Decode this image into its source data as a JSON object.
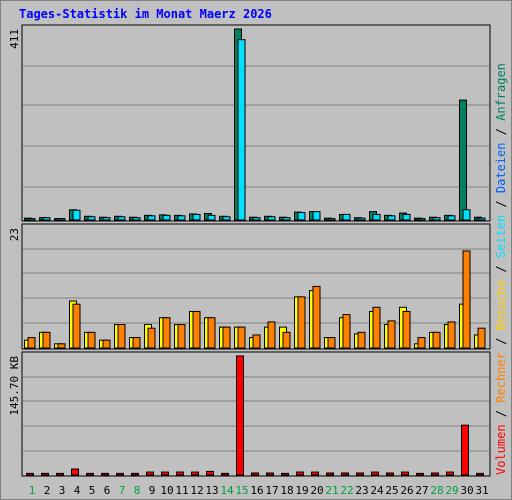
{
  "chart_data": {
    "title": "Tages-Statistik im Monat Maerz 2026",
    "type": "bar",
    "categories": [
      "1",
      "2",
      "3",
      "4",
      "5",
      "6",
      "7",
      "8",
      "9",
      "10",
      "11",
      "12",
      "13",
      "14",
      "15",
      "16",
      "17",
      "18",
      "19",
      "20",
      "21",
      "22",
      "23",
      "24",
      "25",
      "26",
      "27",
      "28",
      "29",
      "30",
      "31"
    ],
    "weekend_days": [
      "1",
      "7",
      "8",
      "14",
      "15",
      "21",
      "22",
      "28",
      "29"
    ],
    "panels": [
      {
        "name": "hits-files",
        "ytick": "411",
        "ymax": 411,
        "series": [
          {
            "name": "Anfragen",
            "color": "#008060",
            "values": [
              4,
              5,
              3,
              22,
              8,
              6,
              8,
              6,
              10,
              11,
              10,
              13,
              14,
              8,
              411,
              6,
              8,
              6,
              17,
              18,
              4,
              12,
              5,
              18,
              10,
              15,
              4,
              6,
              10,
              258,
              6
            ]
          },
          {
            "name": "Dateien",
            "color": "#00e0ff",
            "values": [
              3,
              5,
              3,
              21,
              7,
              5,
              7,
              5,
              9,
              10,
              9,
              12,
              10,
              7,
              388,
              5,
              7,
              5,
              16,
              18,
              3,
              12,
              4,
              12,
              9,
              12,
              3,
              5,
              9,
              22,
              4
            ]
          }
        ]
      },
      {
        "name": "visits-pages",
        "ytick": "23",
        "ymax": 23,
        "series": [
          {
            "name": "Seiten",
            "color": "#ffff00",
            "values": [
              1.5,
              3,
              0.8,
              9,
              3,
              1.5,
              4.5,
              2,
              4.5,
              5.8,
              4.5,
              7,
              5.8,
              4,
              4,
              2,
              4,
              4,
              9.8,
              11,
              2,
              5.8,
              2.7,
              7,
              4.5,
              7.8,
              0.8,
              3,
              4.5,
              8.4,
              2.5
            ]
          },
          {
            "name": "Besuche",
            "color": "#ff8000",
            "values": [
              2,
              3,
              0.8,
              8.4,
              3,
              1.5,
              4.5,
              2,
              3.8,
              5.8,
              4.5,
              7,
              5.8,
              4,
              4,
              2.5,
              5,
              3,
              9.8,
              11.8,
              2,
              6.4,
              3,
              7.8,
              5.2,
              7,
              2,
              3,
              5,
              18.6,
              3.8
            ]
          }
        ]
      },
      {
        "name": "volume",
        "ytick": "145.70 KB",
        "ymax": 145.7,
        "series": [
          {
            "name": "Volumen",
            "color": "#ff0000",
            "values": [
              2,
              2,
              2,
              7.3,
              2,
              2,
              2,
              2,
              3.6,
              3.6,
              3.6,
              3.6,
              4.4,
              2,
              145.7,
              2.5,
              2.5,
              2,
              3.6,
              3.6,
              2.5,
              2.5,
              2.5,
              3.6,
              2.5,
              3.6,
              2,
              2.5,
              3.6,
              61,
              2
            ]
          }
        ]
      }
    ],
    "side_legend": [
      {
        "text": "Volumen",
        "color": "#ff0000"
      },
      {
        "text": " / ",
        "color": "#000000"
      },
      {
        "text": "Rechner",
        "color": "#ff8000"
      },
      {
        "text": " / ",
        "color": "#000000"
      },
      {
        "text": "Besuche",
        "color": "#ffd000"
      },
      {
        "text": " / ",
        "color": "#000000"
      },
      {
        "text": "Seiten",
        "color": "#00e0ff"
      },
      {
        "text": " / ",
        "color": "#000000"
      },
      {
        "text": "Dateien",
        "color": "#0060ff"
      },
      {
        "text": " / ",
        "color": "#000000"
      },
      {
        "text": "Anfragen",
        "color": "#008060"
      }
    ],
    "colors": {
      "title": "#0000ff",
      "weekday_label": "#000000",
      "weekend_label": "#00a040",
      "plot_bg": "#c0c0c0",
      "grid": "#808080"
    }
  }
}
